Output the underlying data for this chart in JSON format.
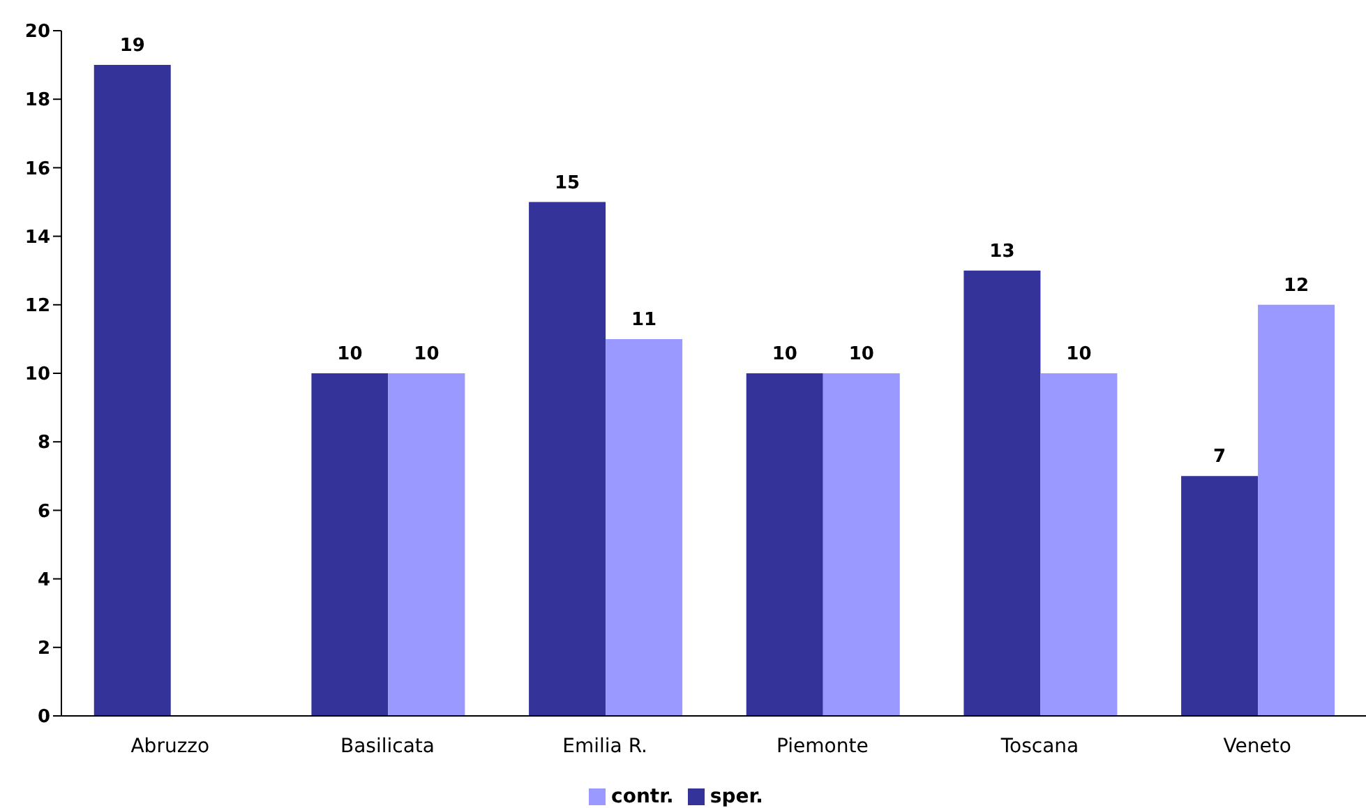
{
  "chart_data": {
    "type": "bar",
    "categories": [
      "Abruzzo",
      "Basilicata",
      "Emilia R.",
      "Piemonte",
      "Toscana",
      "Veneto"
    ],
    "series": [
      {
        "name": "sper.",
        "color": "#333399",
        "values": [
          19,
          10,
          15,
          10,
          13,
          7
        ]
      },
      {
        "name": "contr.",
        "color": "#9999ff",
        "values": [
          null,
          10,
          11,
          10,
          10,
          12
        ]
      }
    ],
    "ylim": [
      0,
      20
    ],
    "yticks": [
      0,
      2,
      4,
      6,
      8,
      10,
      12,
      14,
      16,
      18,
      20
    ],
    "grid": false,
    "legend": "bottom",
    "data_labels": true
  }
}
